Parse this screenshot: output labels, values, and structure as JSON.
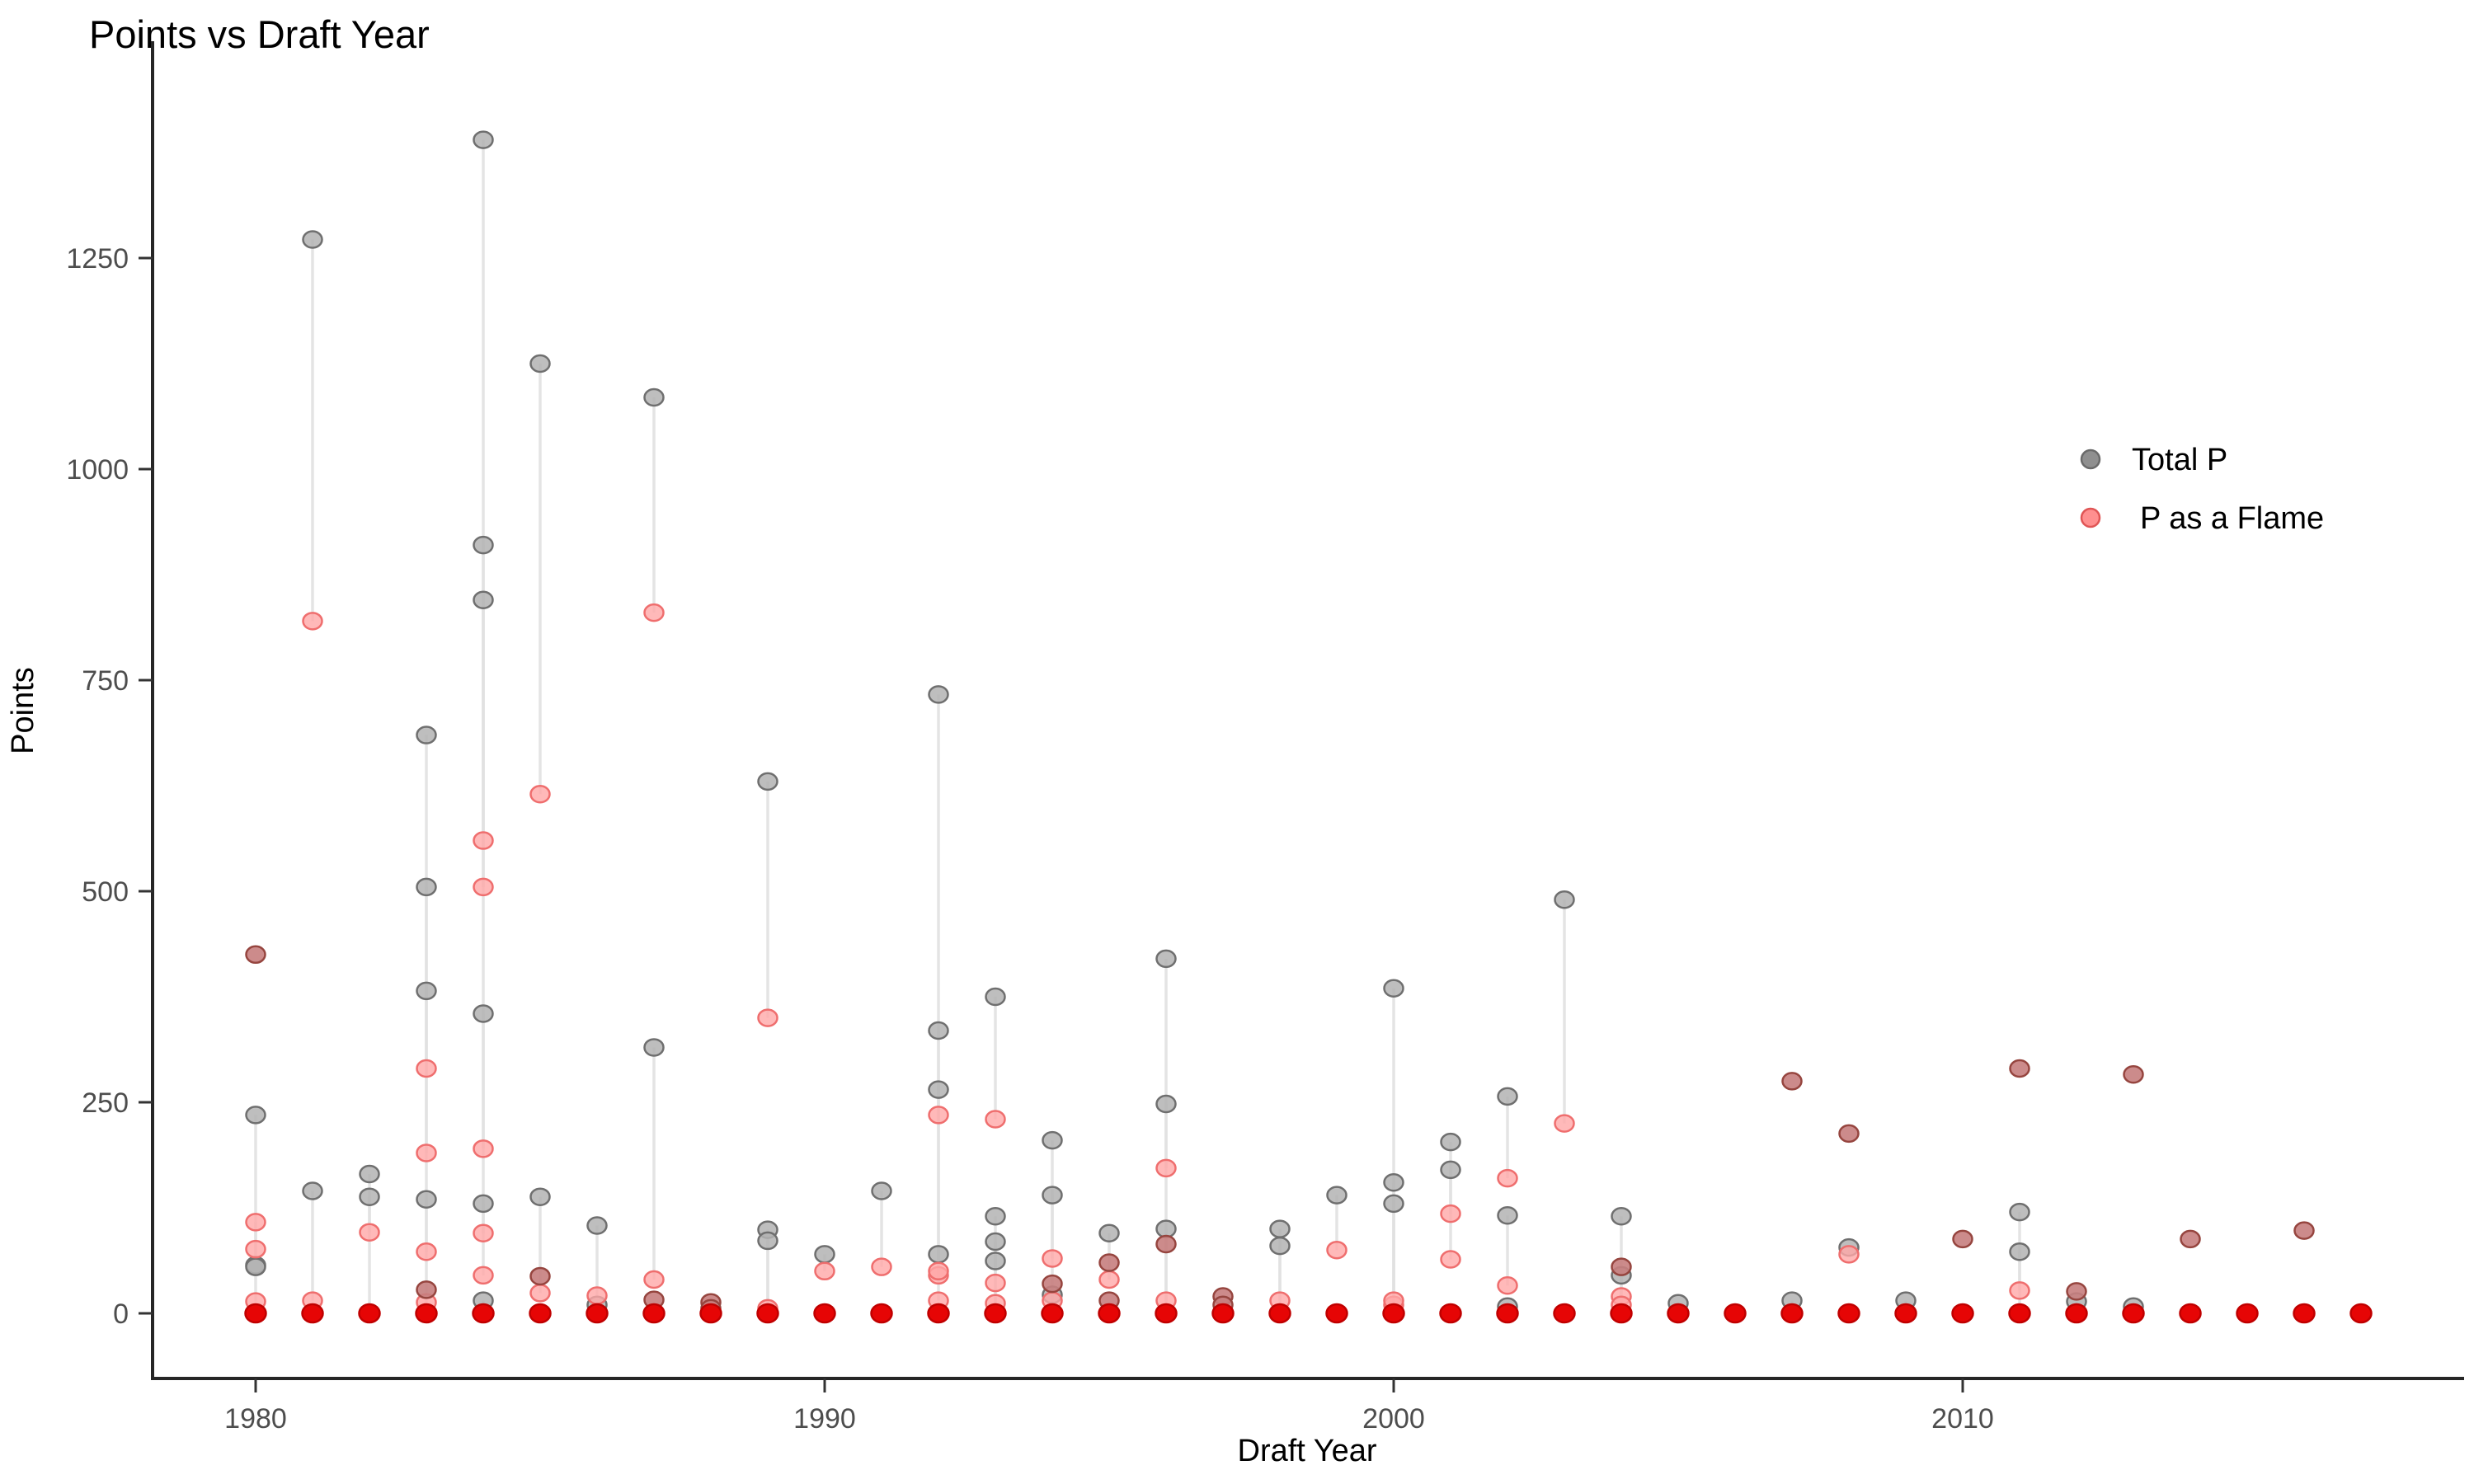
{
  "chart_data": {
    "type": "scatter",
    "title": "Points vs Draft Year",
    "xlabel": "Draft Year",
    "ylabel": "Points",
    "grid": "off",
    "legend_position": "right-upper",
    "x_ticks": [
      1980,
      1990,
      2000,
      2010
    ],
    "y_ticks": [
      0,
      250,
      500,
      750,
      1000,
      1250
    ],
    "x_domain": [
      1978.2,
      2018.8
    ],
    "y_domain": [
      -75,
      1500
    ],
    "series": [
      {
        "name": "Total P",
        "fill": "#b3b3b3",
        "stroke": "#6f6f6f"
      },
      {
        "name": "P as a Flame",
        "fill": "#ffa8a8",
        "stroke": "#ef6e6e"
      }
    ],
    "overlap_style": {
      "fill": "#c77e7e",
      "stroke": "#96453f"
    },
    "zero_style": {
      "fill": "#e60505",
      "stroke": "#c00000"
    },
    "pairs": [
      [
        1980,
        425,
        425
      ],
      [
        1980,
        235,
        14
      ],
      [
        1980,
        57,
        108
      ],
      [
        1980,
        55,
        76
      ],
      [
        1980,
        0,
        0
      ],
      [
        1981,
        1272,
        820
      ],
      [
        1981,
        145,
        15
      ],
      [
        1981,
        0,
        0
      ],
      [
        1982,
        165,
        96
      ],
      [
        1982,
        138,
        0
      ],
      [
        1982,
        0,
        0
      ],
      [
        1983,
        685,
        290
      ],
      [
        1983,
        505,
        190
      ],
      [
        1983,
        382,
        73
      ],
      [
        1983,
        135,
        13
      ],
      [
        1983,
        28,
        28
      ],
      [
        1983,
        0,
        0
      ],
      [
        1984,
        1390,
        560
      ],
      [
        1984,
        910,
        505
      ],
      [
        1984,
        845,
        195
      ],
      [
        1984,
        355,
        95
      ],
      [
        1984,
        130,
        45
      ],
      [
        1984,
        15,
        0
      ],
      [
        1984,
        0,
        0
      ],
      [
        1985,
        1125,
        615
      ],
      [
        1985,
        138,
        24
      ],
      [
        1985,
        44,
        44
      ],
      [
        1985,
        0,
        0
      ],
      [
        1986,
        104,
        21
      ],
      [
        1986,
        10,
        0
      ],
      [
        1986,
        0,
        0
      ],
      [
        1987,
        1085,
        830
      ],
      [
        1987,
        315,
        40
      ],
      [
        1987,
        16,
        16
      ],
      [
        1987,
        0,
        0
      ],
      [
        1988,
        13,
        13
      ],
      [
        1988,
        6,
        6
      ],
      [
        1988,
        0,
        0
      ],
      [
        1989,
        630,
        350
      ],
      [
        1989,
        99,
        6
      ],
      [
        1989,
        86,
        0
      ],
      [
        1989,
        0,
        0
      ],
      [
        1990,
        70,
        50
      ],
      [
        1990,
        0,
        0
      ],
      [
        1991,
        145,
        55
      ],
      [
        1991,
        0,
        0
      ],
      [
        1992,
        733,
        235
      ],
      [
        1992,
        335,
        45
      ],
      [
        1992,
        265,
        15
      ],
      [
        1992,
        70,
        50
      ],
      [
        1992,
        0,
        0
      ],
      [
        1993,
        375,
        230
      ],
      [
        1993,
        115,
        36
      ],
      [
        1993,
        85,
        12
      ],
      [
        1993,
        62,
        0
      ],
      [
        1993,
        0,
        0
      ],
      [
        1994,
        205,
        65
      ],
      [
        1994,
        140,
        15
      ],
      [
        1994,
        35,
        35
      ],
      [
        1994,
        22,
        0
      ],
      [
        1994,
        0,
        0
      ],
      [
        1995,
        95,
        40
      ],
      [
        1995,
        60,
        60
      ],
      [
        1995,
        15,
        15
      ],
      [
        1995,
        0,
        0
      ],
      [
        1996,
        420,
        172
      ],
      [
        1996,
        248,
        0
      ],
      [
        1996,
        100,
        15
      ],
      [
        1996,
        82,
        82
      ],
      [
        1996,
        0,
        0
      ],
      [
        1997,
        20,
        20
      ],
      [
        1997,
        10,
        10
      ],
      [
        1997,
        0,
        0
      ],
      [
        1998,
        100,
        15
      ],
      [
        1998,
        80,
        0
      ],
      [
        1998,
        0,
        0
      ],
      [
        1999,
        140,
        75
      ],
      [
        1999,
        0,
        0
      ],
      [
        2000,
        385,
        10
      ],
      [
        2000,
        155,
        15
      ],
      [
        2000,
        130,
        0
      ],
      [
        2000,
        0,
        0
      ],
      [
        2001,
        203,
        118
      ],
      [
        2001,
        170,
        64
      ],
      [
        2001,
        0,
        0
      ],
      [
        2002,
        257,
        160
      ],
      [
        2002,
        116,
        33
      ],
      [
        2002,
        8,
        0
      ],
      [
        2002,
        0,
        0
      ],
      [
        2003,
        490,
        225
      ],
      [
        2003,
        0,
        0
      ],
      [
        2004,
        115,
        20
      ],
      [
        2004,
        55,
        55
      ],
      [
        2004,
        45,
        10
      ],
      [
        2004,
        0,
        0
      ],
      [
        2005,
        12,
        0
      ],
      [
        2005,
        0,
        0
      ],
      [
        2006,
        0,
        0
      ],
      [
        2007,
        275,
        275
      ],
      [
        2007,
        15,
        0
      ],
      [
        2007,
        0,
        0
      ],
      [
        2008,
        213,
        213
      ],
      [
        2008,
        78,
        70
      ],
      [
        2008,
        0,
        0
      ],
      [
        2009,
        15,
        0
      ],
      [
        2009,
        0,
        0
      ],
      [
        2010,
        88,
        88
      ],
      [
        2010,
        0,
        0
      ],
      [
        2011,
        290,
        290
      ],
      [
        2011,
        120,
        27
      ],
      [
        2011,
        73,
        0
      ],
      [
        2011,
        0,
        0
      ],
      [
        2012,
        26,
        26
      ],
      [
        2012,
        14,
        0
      ],
      [
        2012,
        0,
        0
      ],
      [
        2013,
        283,
        283
      ],
      [
        2013,
        8,
        0
      ],
      [
        2013,
        0,
        0
      ],
      [
        2014,
        88,
        88
      ],
      [
        2014,
        0,
        0
      ],
      [
        2015,
        0,
        0
      ],
      [
        2016,
        98,
        98
      ],
      [
        2016,
        0,
        0
      ],
      [
        2017,
        0,
        0
      ]
    ]
  },
  "legend": {
    "items": [
      {
        "label": "Total P"
      },
      {
        "label": "P as a Flame"
      }
    ]
  }
}
